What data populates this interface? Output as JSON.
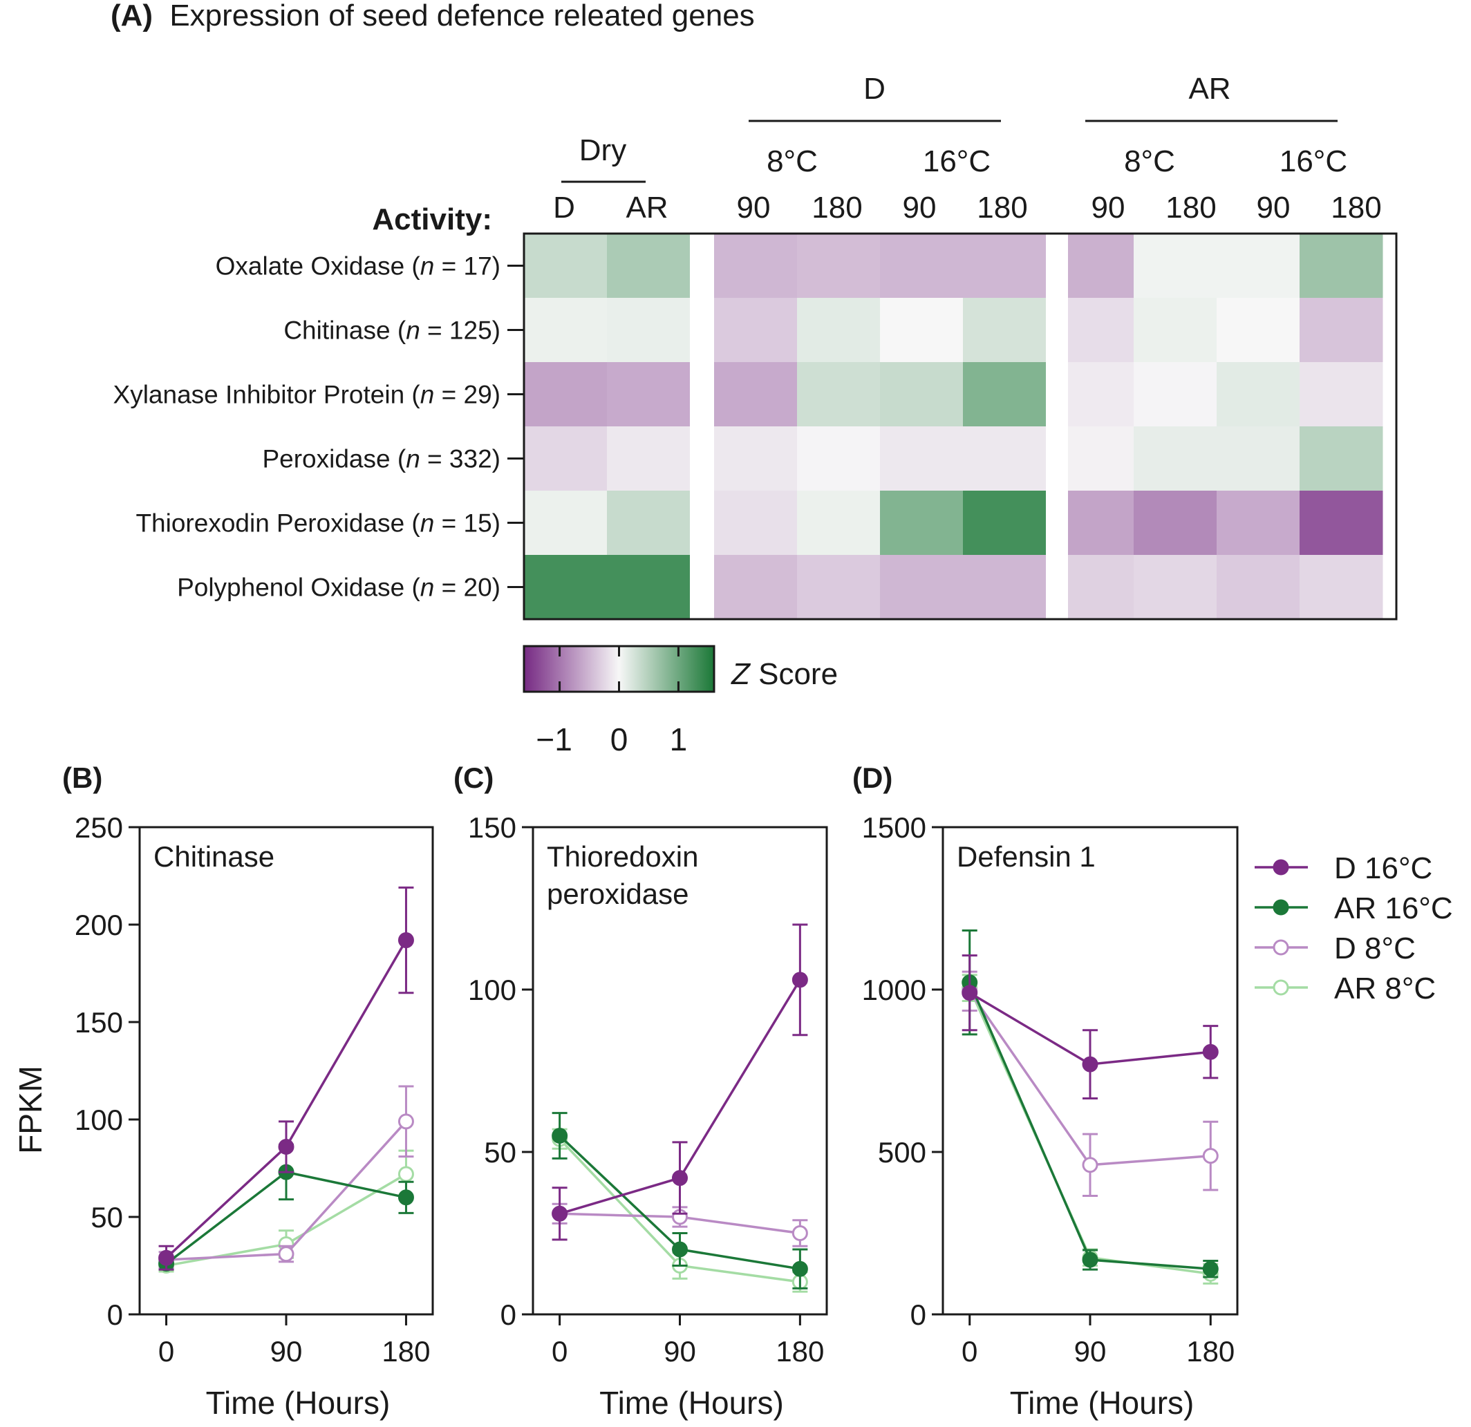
{
  "figure": {
    "heatmap_title_letter": "(A)",
    "heatmap_title": "Expression of seed defence releated genes",
    "activity_label": "Activity:",
    "colorbar_label_prefix": "Z",
    "colorbar_label_suffix": " Score",
    "colorbar_ticks": [
      "−1",
      "0",
      "1"
    ],
    "panel_b_letter": "(B)",
    "panel_c_letter": "(C)",
    "panel_d_letter": "(D)",
    "colors": {
      "D_16": "#7b2a85",
      "AR_16": "#1b7838",
      "D_8": "#b98ac4",
      "AR_8": "#a4dca4",
      "z_low": "#762a83",
      "z_mid": "#f7f7f7",
      "z_high": "#1b7837"
    }
  },
  "chart_data": [
    {
      "type": "heatmap",
      "title": "Expression of seed defence releated genes",
      "groups": [
        {
          "label": "Dry",
          "columns": [
            "D",
            "AR"
          ]
        },
        {
          "label": "D",
          "subgroups": [
            {
              "label": "8°C",
              "columns": [
                "90",
                "180"
              ]
            },
            {
              "label": "16°C",
              "columns": [
                "90",
                "180"
              ]
            }
          ]
        },
        {
          "label": "AR",
          "subgroups": [
            {
              "label": "8°C",
              "columns": [
                "90",
                "180"
              ]
            },
            {
              "label": "16°C",
              "columns": [
                "90",
                "180"
              ]
            }
          ]
        }
      ],
      "rows": [
        {
          "label": "Oxalate Oxidase (",
          "n": "n",
          "rest": " = 17)"
        },
        {
          "label": "Chitinase (",
          "n": "n",
          "rest": " = 125)"
        },
        {
          "label": "Xylanase Inhibitor Protein (",
          "n": "n",
          "rest": " = 29)"
        },
        {
          "label": "Peroxidase (",
          "n": "n",
          "rest": " = 332)"
        },
        {
          "label": "Thiorexodin Peroxidase (",
          "n": "n",
          "rest": " = 15)"
        },
        {
          "label": "Polyphenol Oxidase (",
          "n": "n",
          "rest": " = 20)"
        }
      ],
      "z_values": [
        [
          0.35,
          0.55,
          -0.5,
          -0.45,
          -0.5,
          -0.5,
          -0.55,
          0.05,
          0.05,
          0.65
        ],
        [
          0.08,
          0.1,
          -0.35,
          0.15,
          0.0,
          0.25,
          -0.2,
          0.08,
          0.0,
          -0.4
        ],
        [
          -0.65,
          -0.6,
          -0.6,
          0.3,
          0.35,
          0.85,
          -0.1,
          -0.02,
          0.15,
          -0.15
        ],
        [
          -0.25,
          -0.12,
          -0.12,
          -0.02,
          -0.12,
          -0.12,
          -0.05,
          0.12,
          0.12,
          0.45
        ],
        [
          0.08,
          0.35,
          -0.18,
          0.08,
          0.85,
          1.3,
          -0.65,
          -0.85,
          -0.6,
          -1.25
        ],
        [
          1.3,
          1.3,
          -0.45,
          -0.35,
          -0.5,
          -0.5,
          -0.3,
          -0.25,
          -0.35,
          -0.25
        ]
      ],
      "colorbar": {
        "min": -1.6,
        "max": 1.6,
        "ticks": [
          -1,
          0,
          1
        ]
      }
    },
    {
      "type": "line",
      "panel": "(B)",
      "title": "Chitinase",
      "xlabel": "Time (Hours)",
      "ylabel": "FPKM",
      "x": [
        0,
        90,
        180
      ],
      "xticks": [
        "0",
        "90",
        "180"
      ],
      "ylim": [
        0,
        250
      ],
      "yticks": [
        "0",
        "50",
        "100",
        "150",
        "200",
        "250"
      ],
      "series": [
        {
          "name": "D 16°C",
          "values": [
            29,
            86,
            192
          ],
          "err": [
            6,
            13,
            27
          ]
        },
        {
          "name": "AR 16°C",
          "values": [
            26,
            73,
            60
          ],
          "err": [
            3,
            14,
            8
          ]
        },
        {
          "name": "D 8°C",
          "values": [
            28,
            31,
            99
          ],
          "err": [
            4,
            4,
            18
          ]
        },
        {
          "name": "AR 8°C",
          "values": [
            25,
            36,
            72
          ],
          "err": [
            3,
            7,
            12
          ]
        }
      ]
    },
    {
      "type": "line",
      "panel": "(C)",
      "title": "Thioredoxin",
      "title_line2": "peroxidase",
      "xlabel": "Time (Hours)",
      "x": [
        0,
        90,
        180
      ],
      "xticks": [
        "0",
        "90",
        "180"
      ],
      "ylim": [
        0,
        150
      ],
      "yticks": [
        "0",
        "50",
        "100",
        "150"
      ],
      "series": [
        {
          "name": "D 16°C",
          "values": [
            31,
            42,
            103
          ],
          "err": [
            8,
            11,
            17
          ]
        },
        {
          "name": "AR 16°C",
          "values": [
            55,
            20,
            14
          ],
          "err": [
            7,
            5,
            6
          ]
        },
        {
          "name": "D 8°C",
          "values": [
            31,
            30,
            25
          ],
          "err": [
            3,
            3,
            4
          ]
        },
        {
          "name": "AR 8°C",
          "values": [
            54,
            15,
            10
          ],
          "err": [
            3,
            4,
            3
          ]
        }
      ]
    },
    {
      "type": "line",
      "panel": "(D)",
      "title": "Defensin 1",
      "xlabel": "Time (Hours)",
      "x": [
        0,
        90,
        180
      ],
      "xticks": [
        "0",
        "90",
        "180"
      ],
      "ylim": [
        0,
        1500
      ],
      "yticks": [
        "0",
        "500",
        "1000",
        "1500"
      ],
      "series": [
        {
          "name": "D 16°C",
          "values": [
            990,
            770,
            808
          ],
          "err": [
            115,
            105,
            80
          ]
        },
        {
          "name": "AR 16°C",
          "values": [
            1022,
            168,
            140
          ],
          "err": [
            160,
            30,
            25
          ]
        },
        {
          "name": "D 8°C",
          "values": [
            995,
            460,
            488
          ],
          "err": [
            60,
            95,
            105
          ]
        },
        {
          "name": "AR 8°C",
          "values": [
            1005,
            175,
            125
          ],
          "err": [
            40,
            25,
            30
          ]
        }
      ]
    }
  ],
  "legend": {
    "placement": "right",
    "entries": [
      {
        "name": "D 16°C"
      },
      {
        "name": "AR 16°C"
      },
      {
        "name": "D 8°C"
      },
      {
        "name": "AR 8°C"
      }
    ]
  }
}
